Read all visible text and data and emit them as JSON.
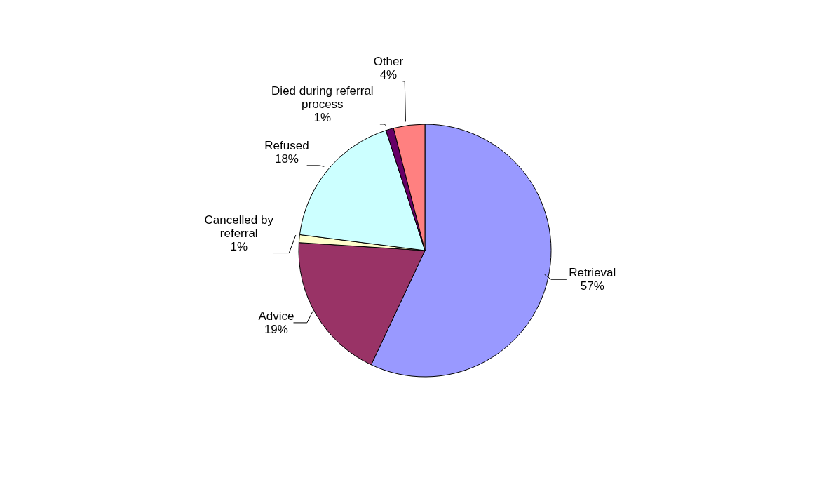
{
  "chart_data": {
    "type": "pie",
    "categories": [
      "Retrieval",
      "Advice",
      "Cancelled by referral",
      "Refused",
      "Died during referral process",
      "Other"
    ],
    "values": [
      57,
      19,
      1,
      18,
      1,
      4
    ],
    "value_labels": [
      "57%",
      "19%",
      "1%",
      "18%",
      "1%",
      "4%"
    ],
    "colors": [
      "#9999ff",
      "#993366",
      "#ffffcc",
      "#ccffff",
      "#660066",
      "#ff8080"
    ],
    "legend": false
  }
}
